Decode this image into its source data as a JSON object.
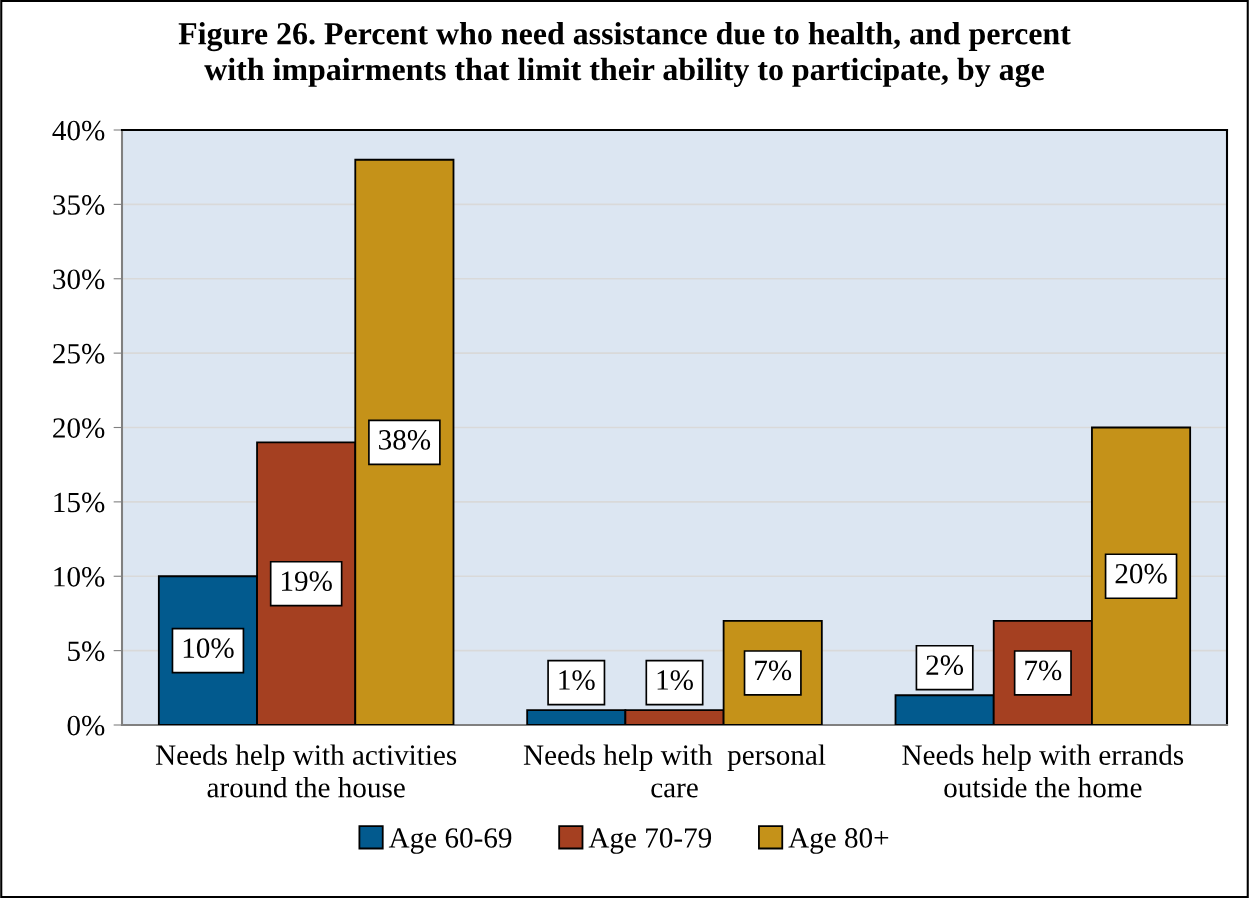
{
  "chart_data": {
    "type": "bar",
    "title": "Figure 26. Percent who need assistance due to health, and percent\nwith impairments that limit their ability to participate, by age",
    "categories": [
      "Needs help with activities\naround the house",
      "Needs help with  personal\ncare",
      "Needs help with errands\noutside the home"
    ],
    "series": [
      {
        "name": "Age 60-69",
        "color": "#025a8e",
        "values": [
          10,
          1,
          2
        ],
        "value_labels": [
          "10%",
          "1%",
          "2%"
        ]
      },
      {
        "name": "Age 70-79",
        "color": "#a54021",
        "values": [
          19,
          1,
          7
        ],
        "value_labels": [
          "19%",
          "1%",
          "7%"
        ]
      },
      {
        "name": "Age 80+",
        "color": "#c59219",
        "values": [
          38,
          7,
          20
        ],
        "value_labels": [
          "38%",
          "7%",
          "20%"
        ]
      }
    ],
    "ylim": [
      0,
      40
    ],
    "yticks": [
      {
        "value": 0,
        "label": "0%"
      },
      {
        "value": 5,
        "label": "5%"
      },
      {
        "value": 10,
        "label": "10%"
      },
      {
        "value": 15,
        "label": "15%"
      },
      {
        "value": 20,
        "label": "20%"
      },
      {
        "value": 25,
        "label": "25%"
      },
      {
        "value": 30,
        "label": "30%"
      },
      {
        "value": 35,
        "label": "35%"
      },
      {
        "value": 40,
        "label": "40%"
      }
    ],
    "grid": "y",
    "legend": "bottom"
  }
}
